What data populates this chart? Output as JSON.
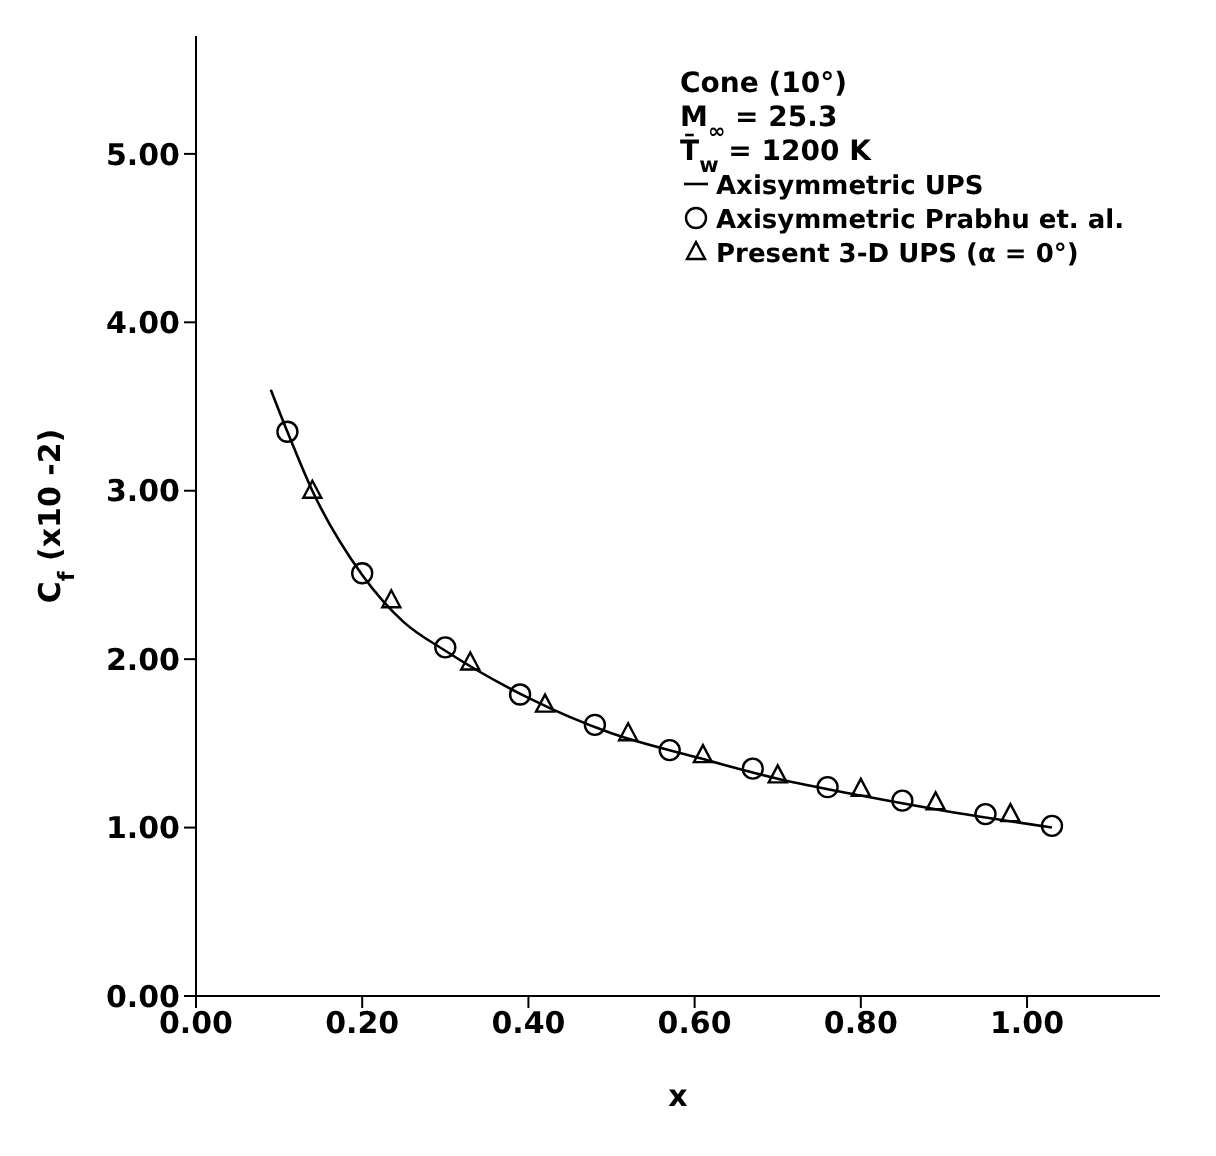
{
  "chart_data": {
    "type": "scatter",
    "xlabel": "x",
    "ylabel": "C$_{f}$ (x10 -2)",
    "annotations": [
      "Cone (10°)",
      "M$_{∞}$ = 25.3",
      "T̄$_{w}$ = 1200 K"
    ],
    "series": [
      {
        "name": "Axisymmetric UPS",
        "type": "line",
        "marker": "none",
        "color": "#000000",
        "x": [
          0.09,
          0.11,
          0.14,
          0.2,
          0.25,
          0.3,
          0.4,
          0.5,
          0.6,
          0.7,
          0.8,
          0.9,
          1.03
        ],
        "values": [
          3.6,
          3.35,
          3.0,
          2.5,
          2.22,
          2.05,
          1.77,
          1.56,
          1.42,
          1.29,
          1.19,
          1.1,
          1.0
        ]
      },
      {
        "name": "Axisymmetric Prabhu et. al.",
        "type": "scatter",
        "marker": "circle",
        "color": "#000000",
        "x": [
          0.11,
          0.2,
          0.3,
          0.39,
          0.48,
          0.57,
          0.67,
          0.76,
          0.85,
          0.95,
          1.03
        ],
        "values": [
          3.35,
          2.51,
          2.07,
          1.79,
          1.61,
          1.46,
          1.35,
          1.24,
          1.16,
          1.08,
          1.01
        ]
      },
      {
        "name": "Present 3-D UPS (α = 0°)",
        "type": "scatter",
        "marker": "triangle",
        "color": "#000000",
        "x": [
          0.14,
          0.235,
          0.33,
          0.42,
          0.52,
          0.61,
          0.7,
          0.8,
          0.89,
          0.98
        ],
        "values": [
          3.0,
          2.35,
          1.98,
          1.73,
          1.56,
          1.43,
          1.31,
          1.23,
          1.15,
          1.08
        ]
      }
    ],
    "xlim": [
      0,
      1.16
    ],
    "ylim": [
      0,
      5.7
    ],
    "xticks": [
      {
        "value": 0,
        "label": "0.00"
      },
      {
        "value": 0.2,
        "label": "0.20"
      },
      {
        "value": 0.4,
        "label": "0.40"
      },
      {
        "value": 0.6,
        "label": "0.60"
      },
      {
        "value": 0.8,
        "label": "0.80"
      },
      {
        "value": 1,
        "label": "1.00"
      }
    ],
    "yticks": [
      {
        "value": 0,
        "label": "0.00"
      },
      {
        "value": 1,
        "label": "1.00"
      },
      {
        "value": 2,
        "label": "2.00"
      },
      {
        "value": 3,
        "label": "3.00"
      },
      {
        "value": 4,
        "label": "4.00"
      },
      {
        "value": 5,
        "label": "5.00"
      }
    ],
    "legend": "top right",
    "grid": false
  }
}
